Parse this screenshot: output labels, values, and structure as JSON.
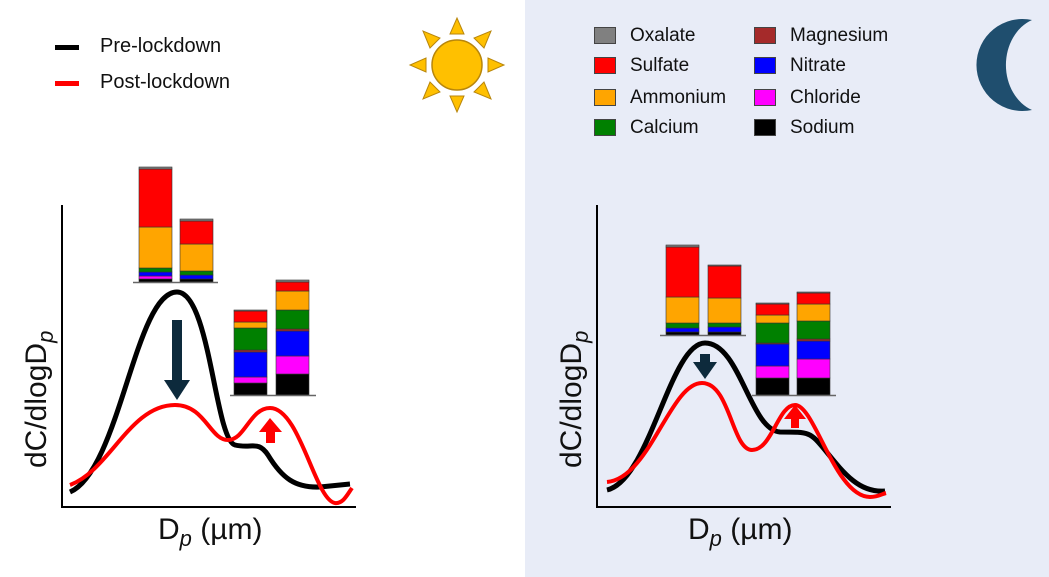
{
  "legend": {
    "pre_label": "Pre-lockdown",
    "post_label": "Post-lockdown",
    "pre_color": "#000000",
    "post_color": "#ff0000"
  },
  "species": [
    {
      "name": "Oxalate",
      "color": "#808080"
    },
    {
      "name": "Sulfate",
      "color": "#ff0000"
    },
    {
      "name": "Ammonium",
      "color": "#ffa500"
    },
    {
      "name": "Calcium",
      "color": "#008000"
    },
    {
      "name": "Magnesium",
      "color": "#a52a2a"
    },
    {
      "name": "Nitrate",
      "color": "#0000ff"
    },
    {
      "name": "Chloride",
      "color": "#ff00ff"
    },
    {
      "name": "Sodium",
      "color": "#000000"
    }
  ],
  "axes": {
    "ylabel": "dC/dlogD",
    "ylabel_sub": "p",
    "xlabel_pre": "D",
    "xlabel_sub": "p",
    "xlabel_post": " (µm)"
  },
  "icons": {
    "day": "sun-icon",
    "night": "crescent-moon-icon",
    "sun_color": "#ffc000",
    "moon_color": "#1f4e6e",
    "arrow_down_color": "#0d2a3c",
    "arrow_up_color": "#ff0000"
  },
  "panels": [
    {
      "name": "day",
      "fine_mode": {
        "pre": {
          "Oxalate": 2,
          "Sulfate": 58,
          "Ammonium": 41,
          "Calcium": 4,
          "Magnesium": 0,
          "Nitrate": 4,
          "Chloride": 3,
          "Sodium": 3
        },
        "post": {
          "Oxalate": 2,
          "Sulfate": 23,
          "Ammonium": 27,
          "Calcium": 4,
          "Magnesium": 0,
          "Nitrate": 4,
          "Chloride": 0,
          "Sodium": 3
        }
      },
      "coarse_mode": {
        "pre": {
          "Oxalate": 1,
          "Sulfate": 11,
          "Ammonium": 6,
          "Calcium": 22,
          "Magnesium": 2,
          "Nitrate": 25,
          "Chloride": 6,
          "Sodium": 12
        },
        "post": {
          "Oxalate": 2,
          "Sulfate": 9,
          "Ammonium": 19,
          "Calcium": 19,
          "Magnesium": 2,
          "Nitrate": 25,
          "Chloride": 18,
          "Sodium": 21
        }
      }
    },
    {
      "name": "night",
      "fine_mode": {
        "pre": {
          "Oxalate": 2,
          "Sulfate": 50,
          "Ammonium": 26,
          "Calcium": 5,
          "Magnesium": 0,
          "Nitrate": 4,
          "Chloride": 0,
          "Sodium": 3
        },
        "post": {
          "Oxalate": 1,
          "Sulfate": 32,
          "Ammonium": 25,
          "Calcium": 4,
          "Magnesium": 0,
          "Nitrate": 5,
          "Chloride": 0,
          "Sodium": 3
        }
      },
      "coarse_mode": {
        "pre": {
          "Oxalate": 1,
          "Sulfate": 11,
          "Ammonium": 8,
          "Calcium": 20,
          "Magnesium": 1,
          "Nitrate": 22,
          "Chloride": 12,
          "Sodium": 17
        },
        "post": {
          "Oxalate": 1,
          "Sulfate": 11,
          "Ammonium": 17,
          "Calcium": 18,
          "Magnesium": 2,
          "Nitrate": 18,
          "Chloride": 19,
          "Sodium": 17
        }
      }
    }
  ]
}
